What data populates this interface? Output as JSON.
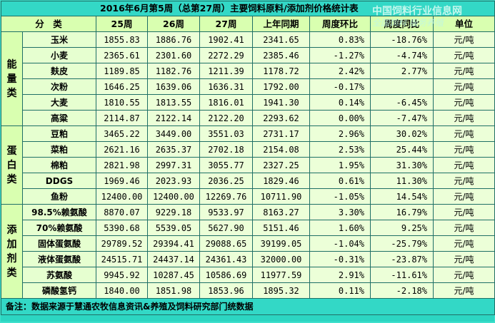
{
  "title": "2016年6月第5周（总第27周）主要饲料原料/添加剂价格统计表",
  "watermark": {
    "line1": "中国饲料行业信息网",
    "line2": "全国饲料 服务养殖"
  },
  "headers": {
    "category": "分　类",
    "w25": "25周",
    "w26": "26周",
    "w27": "27周",
    "last_year": "上年同期",
    "wow": "周度环比",
    "yoy": "周度同比",
    "unit": "单位"
  },
  "categories": {
    "energy": "能量类",
    "protein": "蛋白类",
    "additive": "添加剂类"
  },
  "rows": [
    {
      "name": "玉米",
      "w25": "1855.83",
      "w26": "1886.76",
      "w27": "1902.41",
      "ly": "2341.65",
      "wow": "0.83%",
      "yoy": "-18.76%",
      "unit": "元/吨"
    },
    {
      "name": "小麦",
      "w25": "2365.61",
      "w26": "2301.60",
      "w27": "2272.29",
      "ly": "2385.46",
      "wow": "-1.27%",
      "yoy": "-4.74%",
      "unit": "元/吨"
    },
    {
      "name": "麸皮",
      "w25": "1189.85",
      "w26": "1182.76",
      "w27": "1211.39",
      "ly": "1178.72",
      "wow": "2.42%",
      "yoy": "2.77%",
      "unit": "元/吨"
    },
    {
      "name": "次粉",
      "w25": "1646.25",
      "w26": "1639.06",
      "w27": "1636.31",
      "ly": "1792.00",
      "wow": "-0.17%",
      "yoy": "",
      "unit": "元/吨"
    },
    {
      "name": "大麦",
      "w25": "1810.55",
      "w26": "1813.55",
      "w27": "1816.01",
      "ly": "1941.30",
      "wow": "0.14%",
      "yoy": "-6.45%",
      "unit": "元/吨"
    },
    {
      "name": "高粱",
      "w25": "2114.87",
      "w26": "2122.14",
      "w27": "2122.20",
      "ly": "2293.62",
      "wow": "0.00%",
      "yoy": "-7.47%",
      "unit": "元/吨"
    },
    {
      "name": "豆粕",
      "w25": "3465.22",
      "w26": "3449.00",
      "w27": "3551.03",
      "ly": "2731.17",
      "wow": "2.96%",
      "yoy": "30.02%",
      "unit": "元/吨"
    },
    {
      "name": "菜粕",
      "w25": "2621.16",
      "w26": "2635.37",
      "w27": "2702.18",
      "ly": "2154.08",
      "wow": "2.53%",
      "yoy": "25.44%",
      "unit": "元/吨"
    },
    {
      "name": "棉粕",
      "w25": "2821.98",
      "w26": "2997.31",
      "w27": "3055.77",
      "ly": "2327.25",
      "wow": "1.95%",
      "yoy": "31.30%",
      "unit": "元/吨"
    },
    {
      "name": "DDGS",
      "w25": "1969.46",
      "w26": "2023.93",
      "w27": "2036.25",
      "ly": "1829.46",
      "wow": "0.61%",
      "yoy": "11.30%",
      "unit": "元/吨"
    },
    {
      "name": "鱼粉",
      "w25": "12400.00",
      "w26": "12400.00",
      "w27": "12269.76",
      "ly": "10711.90",
      "wow": "-1.05%",
      "yoy": "14.54%",
      "unit": "元/吨"
    },
    {
      "name": "98.5%赖氨酸",
      "w25": "8870.07",
      "w26": "9229.18",
      "w27": "9533.97",
      "ly": "8163.27",
      "wow": "3.30%",
      "yoy": "16.79%",
      "unit": "元/吨"
    },
    {
      "name": "70%赖氨酸",
      "w25": "5390.68",
      "w26": "5539.05",
      "w27": "5627.90",
      "ly": "5151.46",
      "wow": "1.60%",
      "yoy": "9.25%",
      "unit": "元/吨"
    },
    {
      "name": "固体蛋氨酸",
      "w25": "29789.52",
      "w26": "29394.41",
      "w27": "29088.65",
      "ly": "39199.05",
      "wow": "-1.04%",
      "yoy": "-25.79%",
      "unit": "元/吨"
    },
    {
      "name": "液体蛋氨酸",
      "w25": "24515.71",
      "w26": "24437.14",
      "w27": "24361.43",
      "ly": "32000.00",
      "wow": "-0.31%",
      "yoy": "-23.87%",
      "unit": "元/吨"
    },
    {
      "name": "苏氨酸",
      "w25": "9945.92",
      "w26": "10287.45",
      "w27": "10586.69",
      "ly": "11977.59",
      "wow": "2.91%",
      "yoy": "-11.61%",
      "unit": "元/吨"
    },
    {
      "name": "磷酸氢钙",
      "w25": "1840.00",
      "w26": "1851.98",
      "w27": "1853.96",
      "ly": "1895.32",
      "wow": "0.11%",
      "yoy": "-2.18%",
      "unit": "元/吨"
    }
  ],
  "footnote": "备注：数据来源于慧通农牧信息资讯&养殖及饲料研究部门统数据"
}
